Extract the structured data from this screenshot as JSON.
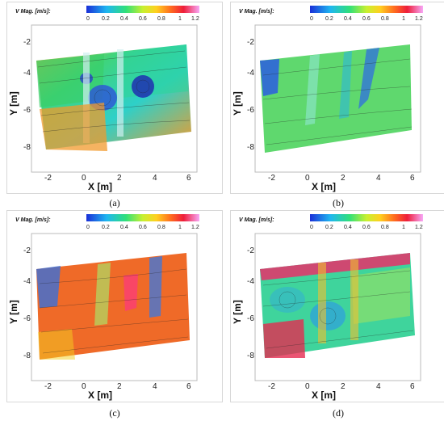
{
  "colorbar": {
    "label": "V Mag. [m/s]:",
    "ticks": [
      "0",
      "0.2",
      "0.4",
      "0.6",
      "0.8",
      "1",
      "1.2"
    ]
  },
  "axes": {
    "xlabel": "X [m]",
    "ylabel": "Y [m]",
    "xticks": [
      "-2",
      "0",
      "2",
      "4",
      "6"
    ],
    "yticks": [
      "-2",
      "-4",
      "-6",
      "-8"
    ]
  },
  "panels": [
    {
      "caption": "(a)",
      "dominant_color": "#2fd27a",
      "secondary_color": "#f4a52a"
    },
    {
      "caption": "(b)",
      "dominant_color": "#58d870",
      "secondary_color": "#2f6fe0"
    },
    {
      "caption": "(c)",
      "dominant_color": "#f06a28",
      "secondary_color": "#3a6fd8"
    },
    {
      "caption": "(d)",
      "dominant_color": "#38d2a0",
      "secondary_color": "#e8306a"
    }
  ]
}
